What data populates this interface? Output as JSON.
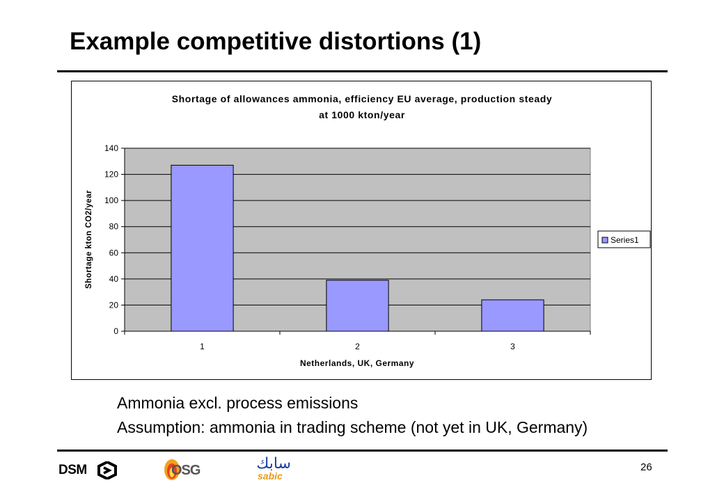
{
  "slide": {
    "title": "Example competitive distortions (1)",
    "notes": [
      "Ammonia excl. process emissions",
      "Assumption: ammonia in trading scheme (not yet in UK, Germany)"
    ],
    "page_number": "26",
    "logos": {
      "dsm": "DSM",
      "osg": "OSG",
      "sabic_arabic": "سابك",
      "sabic_latin": "sabic"
    }
  },
  "chart_data": {
    "type": "bar",
    "title": "Shortage of allowances ammonia, efficiency EU average, production steady at 1000 kton/year",
    "title_lines": [
      "Shortage of allowances ammonia, efficiency EU average, production steady",
      "at 1000 kton/year"
    ],
    "xlabel": "Netherlands, UK, Germany",
    "ylabel": "Shortage kton CO2/year",
    "categories": [
      "1",
      "2",
      "3"
    ],
    "series": [
      {
        "name": "Series1",
        "values": [
          127,
          39,
          24
        ]
      }
    ],
    "ylim": [
      0,
      140
    ],
    "yticks": [
      0,
      20,
      40,
      60,
      80,
      100,
      120,
      140
    ],
    "grid": true,
    "legend": "right",
    "colors": {
      "bar": "#9999ff",
      "plot_background": "#c0c0c0",
      "gridline": "#000000"
    }
  }
}
